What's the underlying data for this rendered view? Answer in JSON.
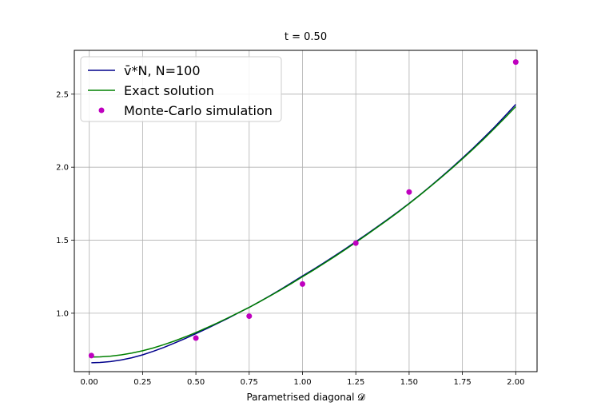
{
  "chart_data": {
    "type": "line",
    "title": "t = 0.50",
    "xlabel": "Parametrised diagonal 𝓓",
    "ylabel": "",
    "xlim": [
      -0.07,
      2.1
    ],
    "ylim": [
      0.6,
      2.8
    ],
    "xticks": [
      "0.00",
      "0.25",
      "0.50",
      "0.75",
      "1.00",
      "1.25",
      "1.50",
      "1.75",
      "2.00"
    ],
    "yticks": [
      "1.0",
      "1.5",
      "2.0",
      "2.5"
    ],
    "grid": true,
    "legend_position": "top-left",
    "series": [
      {
        "name": "v̄*N, N=100",
        "style": "line",
        "color": "#00008b",
        "x": [
          0.01,
          0.05,
          0.1,
          0.15,
          0.2,
          0.25,
          0.3,
          0.35,
          0.4,
          0.45,
          0.5,
          0.55,
          0.6,
          0.65,
          0.7,
          0.75,
          0.8,
          0.85,
          0.9,
          0.95,
          1.0,
          1.05,
          1.1,
          1.15,
          1.2,
          1.25,
          1.3,
          1.35,
          1.4,
          1.45,
          1.5,
          1.55,
          1.6,
          1.65,
          1.7,
          1.75,
          1.8,
          1.85,
          1.9,
          1.95,
          2.0
        ],
        "y": [
          0.661,
          0.663,
          0.669,
          0.68,
          0.695,
          0.715,
          0.739,
          0.766,
          0.796,
          0.827,
          0.86,
          0.894,
          0.929,
          0.965,
          1.003,
          1.04,
          1.08,
          1.122,
          1.165,
          1.21,
          1.255,
          1.299,
          1.345,
          1.392,
          1.44,
          1.49,
          1.54,
          1.591,
          1.643,
          1.697,
          1.752,
          1.81,
          1.87,
          1.932,
          1.996,
          2.062,
          2.13,
          2.201,
          2.274,
          2.351,
          2.43
        ]
      },
      {
        "name": "Exact solution",
        "style": "line",
        "color": "#008000",
        "x": [
          0.01,
          0.05,
          0.1,
          0.15,
          0.2,
          0.25,
          0.3,
          0.35,
          0.4,
          0.45,
          0.5,
          0.55,
          0.6,
          0.65,
          0.7,
          0.75,
          0.8,
          0.85,
          0.9,
          0.95,
          1.0,
          1.05,
          1.1,
          1.15,
          1.2,
          1.25,
          1.3,
          1.35,
          1.4,
          1.45,
          1.5,
          1.55,
          1.6,
          1.65,
          1.7,
          1.75,
          1.8,
          1.85,
          1.9,
          1.95,
          2.0
        ],
        "y": [
          0.7,
          0.701,
          0.706,
          0.715,
          0.727,
          0.743,
          0.762,
          0.785,
          0.81,
          0.838,
          0.868,
          0.9,
          0.933,
          0.968,
          1.004,
          1.04,
          1.08,
          1.12,
          1.162,
          1.205,
          1.25,
          1.294,
          1.34,
          1.387,
          1.435,
          1.485,
          1.536,
          1.588,
          1.64,
          1.694,
          1.75,
          1.808,
          1.868,
          1.929,
          1.992,
          2.057,
          2.124,
          2.193,
          2.265,
          2.339,
          2.415
        ]
      },
      {
        "name": "Monte-Carlo simulation",
        "style": "scatter",
        "color": "#bf00bf",
        "x": [
          0.01,
          0.5,
          0.75,
          1.0,
          1.25,
          1.5,
          2.0
        ],
        "y": [
          0.71,
          0.83,
          0.98,
          1.2,
          1.48,
          1.83,
          2.72
        ]
      }
    ]
  }
}
